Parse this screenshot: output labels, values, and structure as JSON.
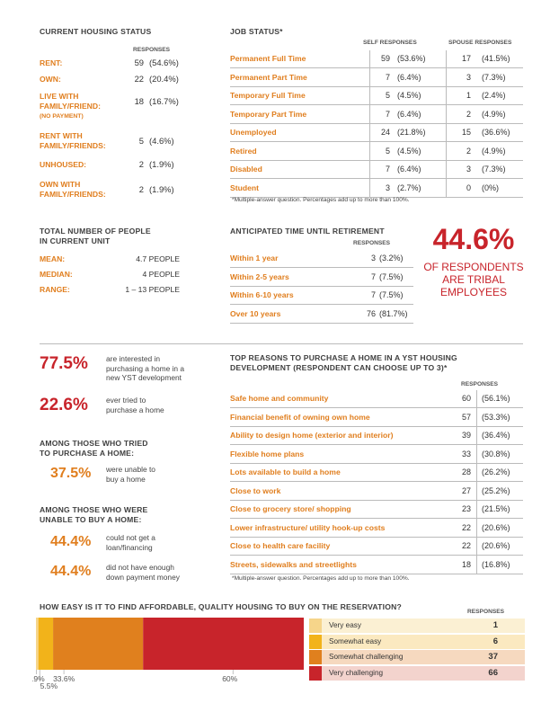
{
  "housing": {
    "title": "CURRENT HOUSING STATUS",
    "responses_header": "RESPONSES",
    "rows": [
      {
        "label": [
          "RENT:"
        ],
        "n": "59",
        "pct": "(54.6%)"
      },
      {
        "label": [
          "OWN:"
        ],
        "n": "22",
        "pct": "(20.4%)"
      },
      {
        "label": [
          "LIVE WITH",
          "FAMILY/FRIEND:"
        ],
        "sublabel": "(NO PAYMENT)",
        "n": "18",
        "pct": "(16.7%)"
      },
      {
        "label": [
          "RENT WITH",
          "FAMILY/FRIENDS:"
        ],
        "n": "5",
        "pct": "(4.6%)"
      },
      {
        "label": [
          "UNHOUSED:"
        ],
        "n": "2",
        "pct": "(1.9%)"
      },
      {
        "label": [
          "OWN WITH",
          "FAMILY/FRIENDS:"
        ],
        "n": "2",
        "pct": "(1.9%)"
      }
    ]
  },
  "job": {
    "title": "JOB STATUS*",
    "self_header": "SELF RESPONSES",
    "spouse_header": "SPOUSE RESPONSES",
    "rows": [
      {
        "label": "Permanent Full Time",
        "self_n": "59",
        "self_pct": "(53.6%)",
        "sp_n": "17",
        "sp_pct": "(41.5%)"
      },
      {
        "label": "Permanent Part Time",
        "self_n": "7",
        "self_pct": "(6.4%)",
        "sp_n": "3",
        "sp_pct": "(7.3%)"
      },
      {
        "label": "Temporary Full Time",
        "self_n": "5",
        "self_pct": "(4.5%)",
        "sp_n": "1",
        "sp_pct": "(2.4%)"
      },
      {
        "label": "Temporary Part Time",
        "self_n": "7",
        "self_pct": "(6.4%)",
        "sp_n": "2",
        "sp_pct": "(4.9%)"
      },
      {
        "label": "Unemployed",
        "self_n": "24",
        "self_pct": "(21.8%)",
        "sp_n": "15",
        "sp_pct": "(36.6%)"
      },
      {
        "label": "Retired",
        "self_n": "5",
        "self_pct": "(4.5%)",
        "sp_n": "2",
        "sp_pct": "(4.9%)"
      },
      {
        "label": "Disabled",
        "self_n": "7",
        "self_pct": "(6.4%)",
        "sp_n": "3",
        "sp_pct": "(7.3%)"
      },
      {
        "label": "Student",
        "self_n": "3",
        "self_pct": "(2.7%)",
        "sp_n": "0",
        "sp_pct": "(0%)"
      }
    ],
    "note": "*Multiple-answer question. Percentages add up to more than 100%."
  },
  "people": {
    "title_lines": [
      "TOTAL NUMBER OF PEOPLE",
      "IN CURRENT UNIT"
    ],
    "rows": [
      {
        "label": "MEAN:",
        "value": "4.7 PEOPLE"
      },
      {
        "label": "MEDIAN:",
        "value": "4 PEOPLE"
      },
      {
        "label": "RANGE:",
        "value": "1 – 13 PEOPLE"
      }
    ]
  },
  "retirement": {
    "title": "ANTICIPATED TIME UNTIL RETIREMENT",
    "responses_header": "RESPONSES",
    "rows": [
      {
        "label": "Within 1 year",
        "n": "3",
        "pct": "(3.2%)"
      },
      {
        "label": "Within 2-5 years",
        "n": "7",
        "pct": "(7.5%)"
      },
      {
        "label": "Within 6-10 years",
        "n": "7",
        "pct": "(7.5%)"
      },
      {
        "label": "Over 10 years",
        "n": "76",
        "pct": "(81.7%)"
      }
    ]
  },
  "tribal": {
    "value": "44.6%",
    "lines": [
      "OF RESPONDENTS",
      "ARE TRIBAL",
      "EMPLOYEES"
    ]
  },
  "purchase": {
    "stat1": {
      "value": "77.5%",
      "lines": [
        "are interested in",
        "purchasing a home in a",
        "new YST development"
      ]
    },
    "stat2": {
      "value": "22.6%",
      "lines": [
        "ever tried to",
        "purchase a home"
      ]
    },
    "tried_heading": [
      "AMONG THOSE WHO TRIED",
      "TO PURCHASE A HOME:"
    ],
    "stat3": {
      "value": "37.5%",
      "lines": [
        "were unable to",
        "buy a home"
      ]
    },
    "unable_heading": [
      "AMONG THOSE WHO WERE",
      "UNABLE TO BUY A HOME:"
    ],
    "stat4": {
      "value": "44.4%",
      "lines": [
        "could not get a",
        "loan/financing"
      ]
    },
    "stat5": {
      "value": "44.4%",
      "lines": [
        "did not have enough",
        "down payment money"
      ]
    }
  },
  "reasons": {
    "title_lines": [
      "TOP REASONS TO PURCHASE A HOME IN A YST HOUSING",
      "DEVELOPMENT (RESPONDENT CAN CHOOSE UP TO 3)*"
    ],
    "responses_header": "RESPONSES",
    "rows": [
      {
        "label": "Safe home and community",
        "n": "60",
        "pct": "(56.1%)"
      },
      {
        "label": "Financial benefit of owning own home",
        "n": "57",
        "pct": "(53.3%)"
      },
      {
        "label": "Ability to design home (exterior and interior)",
        "n": "39",
        "pct": "(36.4%)"
      },
      {
        "label": "Flexible home plans",
        "n": "33",
        "pct": "(30.8%)"
      },
      {
        "label": "Lots available to build a home",
        "n": "28",
        "pct": "(26.2%)"
      },
      {
        "label": "Close to work",
        "n": "27",
        "pct": "(25.2%)"
      },
      {
        "label": "Close to grocery store/ shopping",
        "n": "23",
        "pct": "(21.5%)"
      },
      {
        "label": "Lower infrastructure/ utility hook-up costs",
        "n": "22",
        "pct": "(20.6%)"
      },
      {
        "label": "Close to health care facility",
        "n": "22",
        "pct": "(20.6%)"
      },
      {
        "label": "Streets, sidewalks and streetlights",
        "n": "18",
        "pct": "(16.8%)"
      }
    ],
    "note": "*Multiple-answer question. Percentages add up to more than 100%."
  },
  "chart_data": {
    "type": "bar",
    "title": "HOW EASY IS IT TO FIND AFFORDABLE, QUALITY HOUSING TO BUY ON THE RESERVATION?",
    "responses_header": "RESPONSES",
    "categories": [
      "Very easy",
      "Somewhat easy",
      "Somewhat challenging",
      "Very challenging"
    ],
    "values": [
      1,
      6,
      37,
      66
    ],
    "percent_labels": [
      "0.9%",
      "5.5%",
      "33.6%",
      "60%"
    ],
    "percents": [
      0.9,
      5.5,
      33.6,
      60
    ],
    "colors": [
      "#f6d58a",
      "#f2b31a",
      "#e0801e",
      "#c8242b"
    ],
    "legend_bg": [
      "#fbf0d3",
      "#fbe9c0",
      "#f6d9bf",
      "#f3d3cd"
    ]
  }
}
